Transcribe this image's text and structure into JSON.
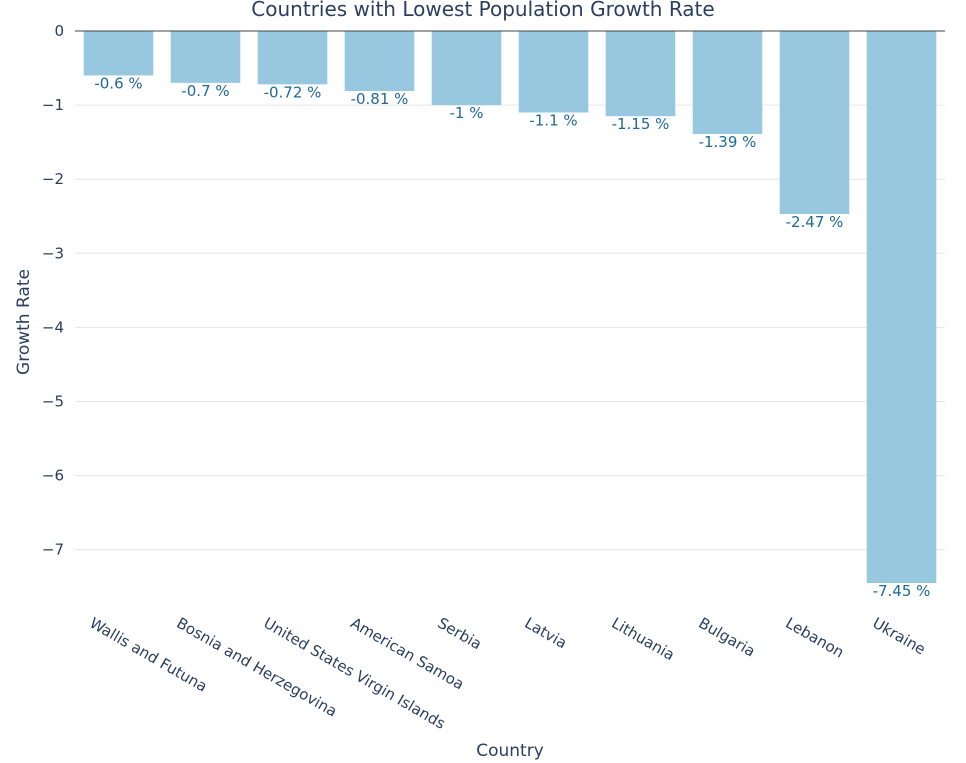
{
  "chart_data": {
    "type": "bar",
    "title": "Countries with Lowest Population Growth Rate",
    "xlabel": "Country",
    "ylabel": "Growth Rate",
    "categories": [
      "Wallis and Futuna",
      "Bosnia and Herzegovina",
      "United States Virgin Islands",
      "American Samoa",
      "Serbia",
      "Latvia",
      "Lithuania",
      "Bulgaria",
      "Lebanon",
      "Ukraine"
    ],
    "values": [
      -0.6,
      -0.7,
      -0.72,
      -0.81,
      -1,
      -1.1,
      -1.15,
      -1.39,
      -2.47,
      -7.45
    ],
    "data_labels": [
      "-0.6 %",
      "-0.7 %",
      "-0.72 %",
      "-0.81 %",
      "-1 %",
      "-1.1 %",
      "-1.15 %",
      "-1.39 %",
      "-2.47 %",
      "-7.45 %"
    ],
    "ylim": [
      -7.45,
      0
    ],
    "yticks": [
      0,
      -1,
      -2,
      -3,
      -4,
      -5,
      -6,
      -7
    ],
    "ytick_labels": [
      "0",
      "−1",
      "−2",
      "−3",
      "−4",
      "−5",
      "−6",
      "−7"
    ],
    "grid": true,
    "colors": {
      "bar": "#98c8df",
      "label": "#1f6a96",
      "text": "#2a3f5f",
      "grid": "#e6e6e6"
    }
  }
}
